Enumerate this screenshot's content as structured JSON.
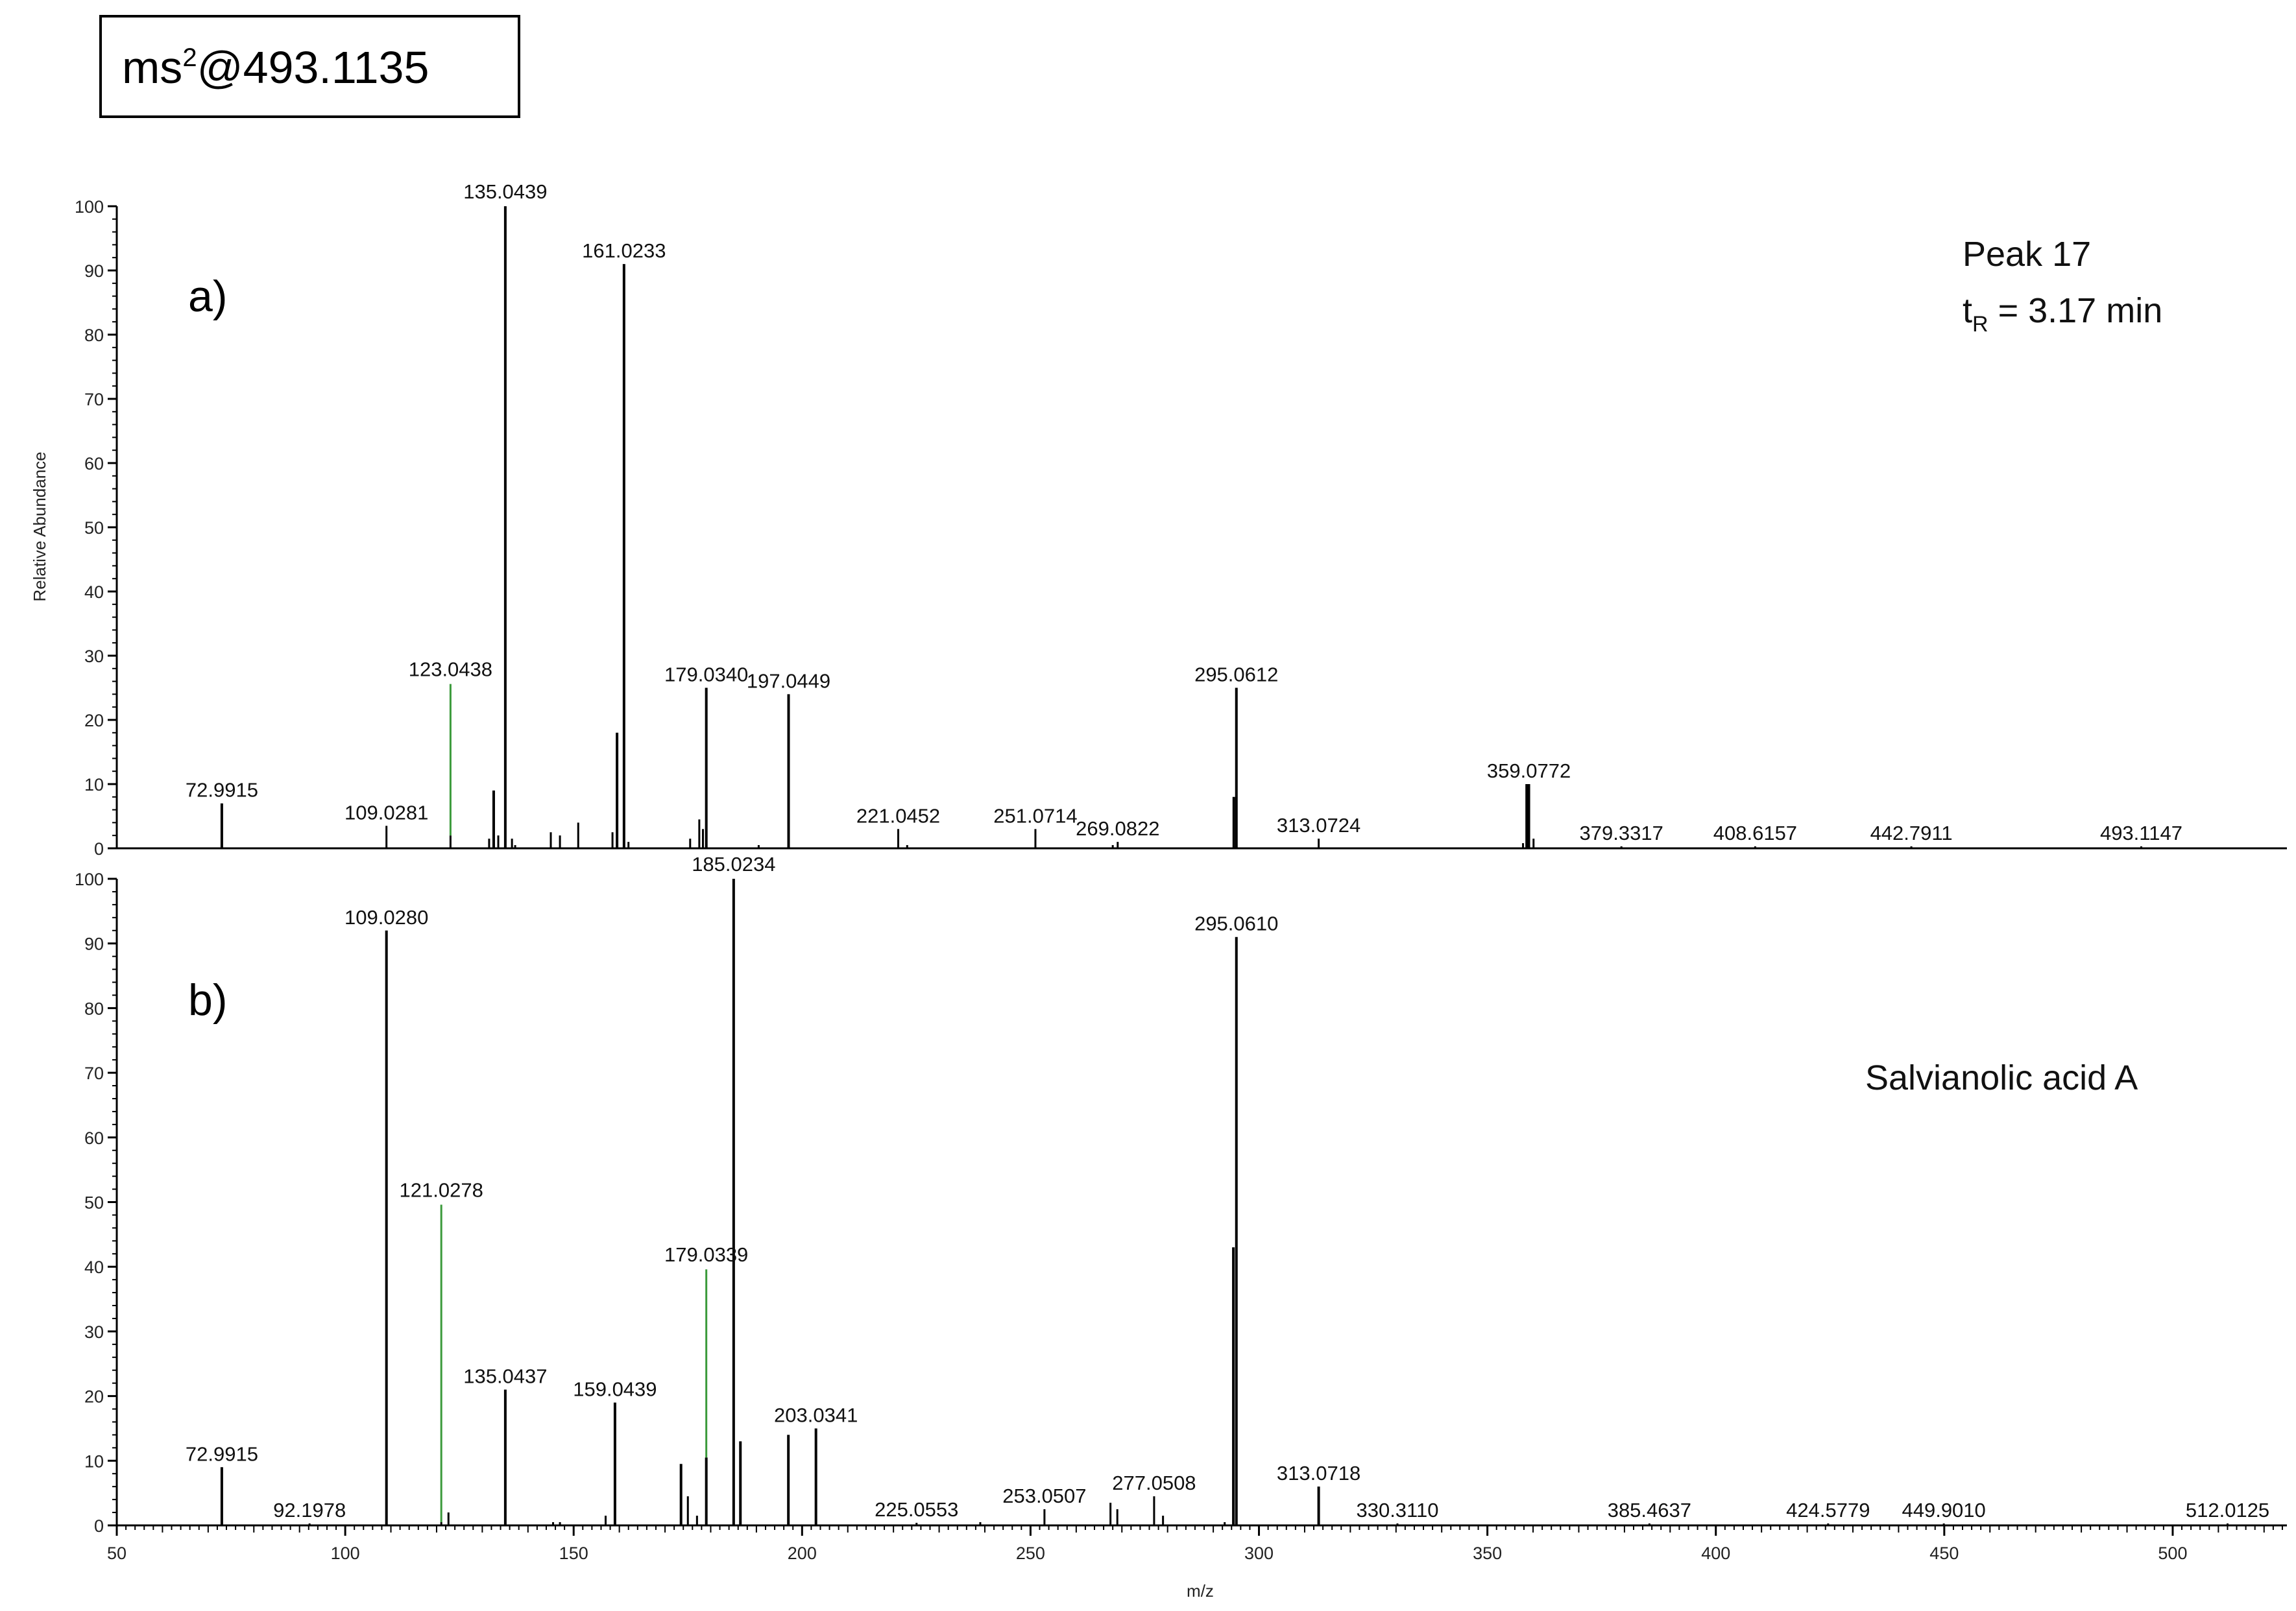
{
  "header": {
    "label_ms": "ms",
    "label_sup": "2",
    "label_rest": "@493.1135"
  },
  "axis": {
    "ylabel": "Relative Abundance",
    "xlabel": "m/z",
    "y_ticks": [
      0,
      10,
      20,
      30,
      40,
      50,
      60,
      70,
      80,
      90,
      100
    ],
    "x_ticks": [
      50,
      100,
      150,
      200,
      250,
      300,
      350,
      400,
      450,
      500
    ],
    "xlim": [
      50,
      525
    ],
    "ylim": [
      0,
      100
    ]
  },
  "colors": {
    "peaks": "#000000",
    "leader": "#3a9a3a"
  },
  "chart_data": [
    {
      "type": "bar",
      "panel_label": "a)",
      "title_line1": "Peak 17",
      "title_t": "t",
      "title_sub": "R",
      "title_rest": " = 3.17 min",
      "xlabel": "m/z",
      "ylabel": "Relative Abundance",
      "xlim": [
        50,
        525
      ],
      "ylim": [
        0,
        100
      ],
      "peaks": [
        {
          "mz": 72.9915,
          "intensity": 7,
          "label": "72.9915"
        },
        {
          "mz": 109.0281,
          "intensity": 3.5,
          "label": "109.0281"
        },
        {
          "mz": 123.0438,
          "intensity": 2,
          "label": "123.0438",
          "label_intensity": 26
        },
        {
          "mz": 131.5,
          "intensity": 1.5
        },
        {
          "mz": 132.5,
          "intensity": 9
        },
        {
          "mz": 133.5,
          "intensity": 2
        },
        {
          "mz": 135.0439,
          "intensity": 100,
          "label": "135.0439"
        },
        {
          "mz": 136.5,
          "intensity": 1.5
        },
        {
          "mz": 137.2,
          "intensity": 0.5
        },
        {
          "mz": 145.0,
          "intensity": 2.5
        },
        {
          "mz": 147.0,
          "intensity": 2
        },
        {
          "mz": 151.0,
          "intensity": 4
        },
        {
          "mz": 158.5,
          "intensity": 2.5
        },
        {
          "mz": 159.5,
          "intensity": 18
        },
        {
          "mz": 161.0233,
          "intensity": 91,
          "label": "161.0233"
        },
        {
          "mz": 162.0,
          "intensity": 1
        },
        {
          "mz": 175.5,
          "intensity": 1.5
        },
        {
          "mz": 177.5,
          "intensity": 4.5
        },
        {
          "mz": 178.3,
          "intensity": 3
        },
        {
          "mz": 179.034,
          "intensity": 25,
          "label": "179.0340"
        },
        {
          "mz": 190.5,
          "intensity": 0.5
        },
        {
          "mz": 197.0449,
          "intensity": 24,
          "label": "197.0449"
        },
        {
          "mz": 221.0452,
          "intensity": 3,
          "label": "221.0452"
        },
        {
          "mz": 223.0,
          "intensity": 0.5
        },
        {
          "mz": 251.0714,
          "intensity": 3,
          "label": "251.0714"
        },
        {
          "mz": 268.0,
          "intensity": 0.5
        },
        {
          "mz": 269.0822,
          "intensity": 1,
          "label": "269.0822"
        },
        {
          "mz": 294.5,
          "intensity": 8
        },
        {
          "mz": 295.0612,
          "intensity": 25,
          "label": "295.0612"
        },
        {
          "mz": 313.0724,
          "intensity": 1.5,
          "label": "313.0724"
        },
        {
          "mz": 357.8,
          "intensity": 0.8
        },
        {
          "mz": 358.6,
          "intensity": 10
        },
        {
          "mz": 359.0772,
          "intensity": 10,
          "label": "359.0772"
        },
        {
          "mz": 360.1,
          "intensity": 1.5
        },
        {
          "mz": 379.3317,
          "intensity": 0.3,
          "label": "379.3317"
        },
        {
          "mz": 408.6157,
          "intensity": 0.3,
          "label": "408.6157"
        },
        {
          "mz": 442.7911,
          "intensity": 0.3,
          "label": "442.7911"
        },
        {
          "mz": 493.1147,
          "intensity": 0.3,
          "label": "493.1147"
        }
      ]
    },
    {
      "type": "bar",
      "panel_label": "b)",
      "title_line1": "Salvianolic acid A",
      "xlabel": "m/z",
      "ylabel": "Relative Abundance",
      "xlim": [
        50,
        525
      ],
      "ylim": [
        0,
        100
      ],
      "peaks": [
        {
          "mz": 72.9915,
          "intensity": 9,
          "label": "72.9915"
        },
        {
          "mz": 92.1978,
          "intensity": 0.3,
          "label": "92.1978"
        },
        {
          "mz": 109.028,
          "intensity": 92,
          "label": "109.0280"
        },
        {
          "mz": 121.0278,
          "intensity": 0.5,
          "label": "121.0278",
          "label_intensity": 50
        },
        {
          "mz": 122.6,
          "intensity": 2
        },
        {
          "mz": 135.0437,
          "intensity": 21,
          "label": "135.0437"
        },
        {
          "mz": 145.5,
          "intensity": 0.5
        },
        {
          "mz": 147.0,
          "intensity": 0.5
        },
        {
          "mz": 157.0,
          "intensity": 1.5
        },
        {
          "mz": 159.0439,
          "intensity": 19,
          "label": "159.0439"
        },
        {
          "mz": 173.5,
          "intensity": 9.5
        },
        {
          "mz": 175.0,
          "intensity": 4.5
        },
        {
          "mz": 177.0,
          "intensity": 1.5
        },
        {
          "mz": 179.0339,
          "intensity": 10.5,
          "label": "179.0339",
          "label_intensity": 40
        },
        {
          "mz": 185.0234,
          "intensity": 100,
          "label": "185.0234"
        },
        {
          "mz": 186.5,
          "intensity": 13
        },
        {
          "mz": 197.0,
          "intensity": 14
        },
        {
          "mz": 203.0341,
          "intensity": 15,
          "label": "203.0341"
        },
        {
          "mz": 225.0553,
          "intensity": 0.4,
          "label": "225.0553"
        },
        {
          "mz": 239.0,
          "intensity": 0.5
        },
        {
          "mz": 253.0507,
          "intensity": 2.5,
          "label": "253.0507"
        },
        {
          "mz": 267.5,
          "intensity": 3.5
        },
        {
          "mz": 269.0,
          "intensity": 2.5
        },
        {
          "mz": 277.0508,
          "intensity": 4.5,
          "label": "277.0508"
        },
        {
          "mz": 279.0,
          "intensity": 1.5
        },
        {
          "mz": 292.5,
          "intensity": 0.5
        },
        {
          "mz": 294.4,
          "intensity": 43
        },
        {
          "mz": 295.061,
          "intensity": 91,
          "label": "295.0610"
        },
        {
          "mz": 313.0718,
          "intensity": 6,
          "label": "313.0718"
        },
        {
          "mz": 330.311,
          "intensity": 0.3,
          "label": "330.3110"
        },
        {
          "mz": 385.4637,
          "intensity": 0.3,
          "label": "385.4637"
        },
        {
          "mz": 424.5779,
          "intensity": 0.3,
          "label": "424.5779"
        },
        {
          "mz": 449.901,
          "intensity": 0.3,
          "label": "449.9010"
        },
        {
          "mz": 512.0125,
          "intensity": 0.3,
          "label": "512.0125"
        }
      ]
    }
  ]
}
